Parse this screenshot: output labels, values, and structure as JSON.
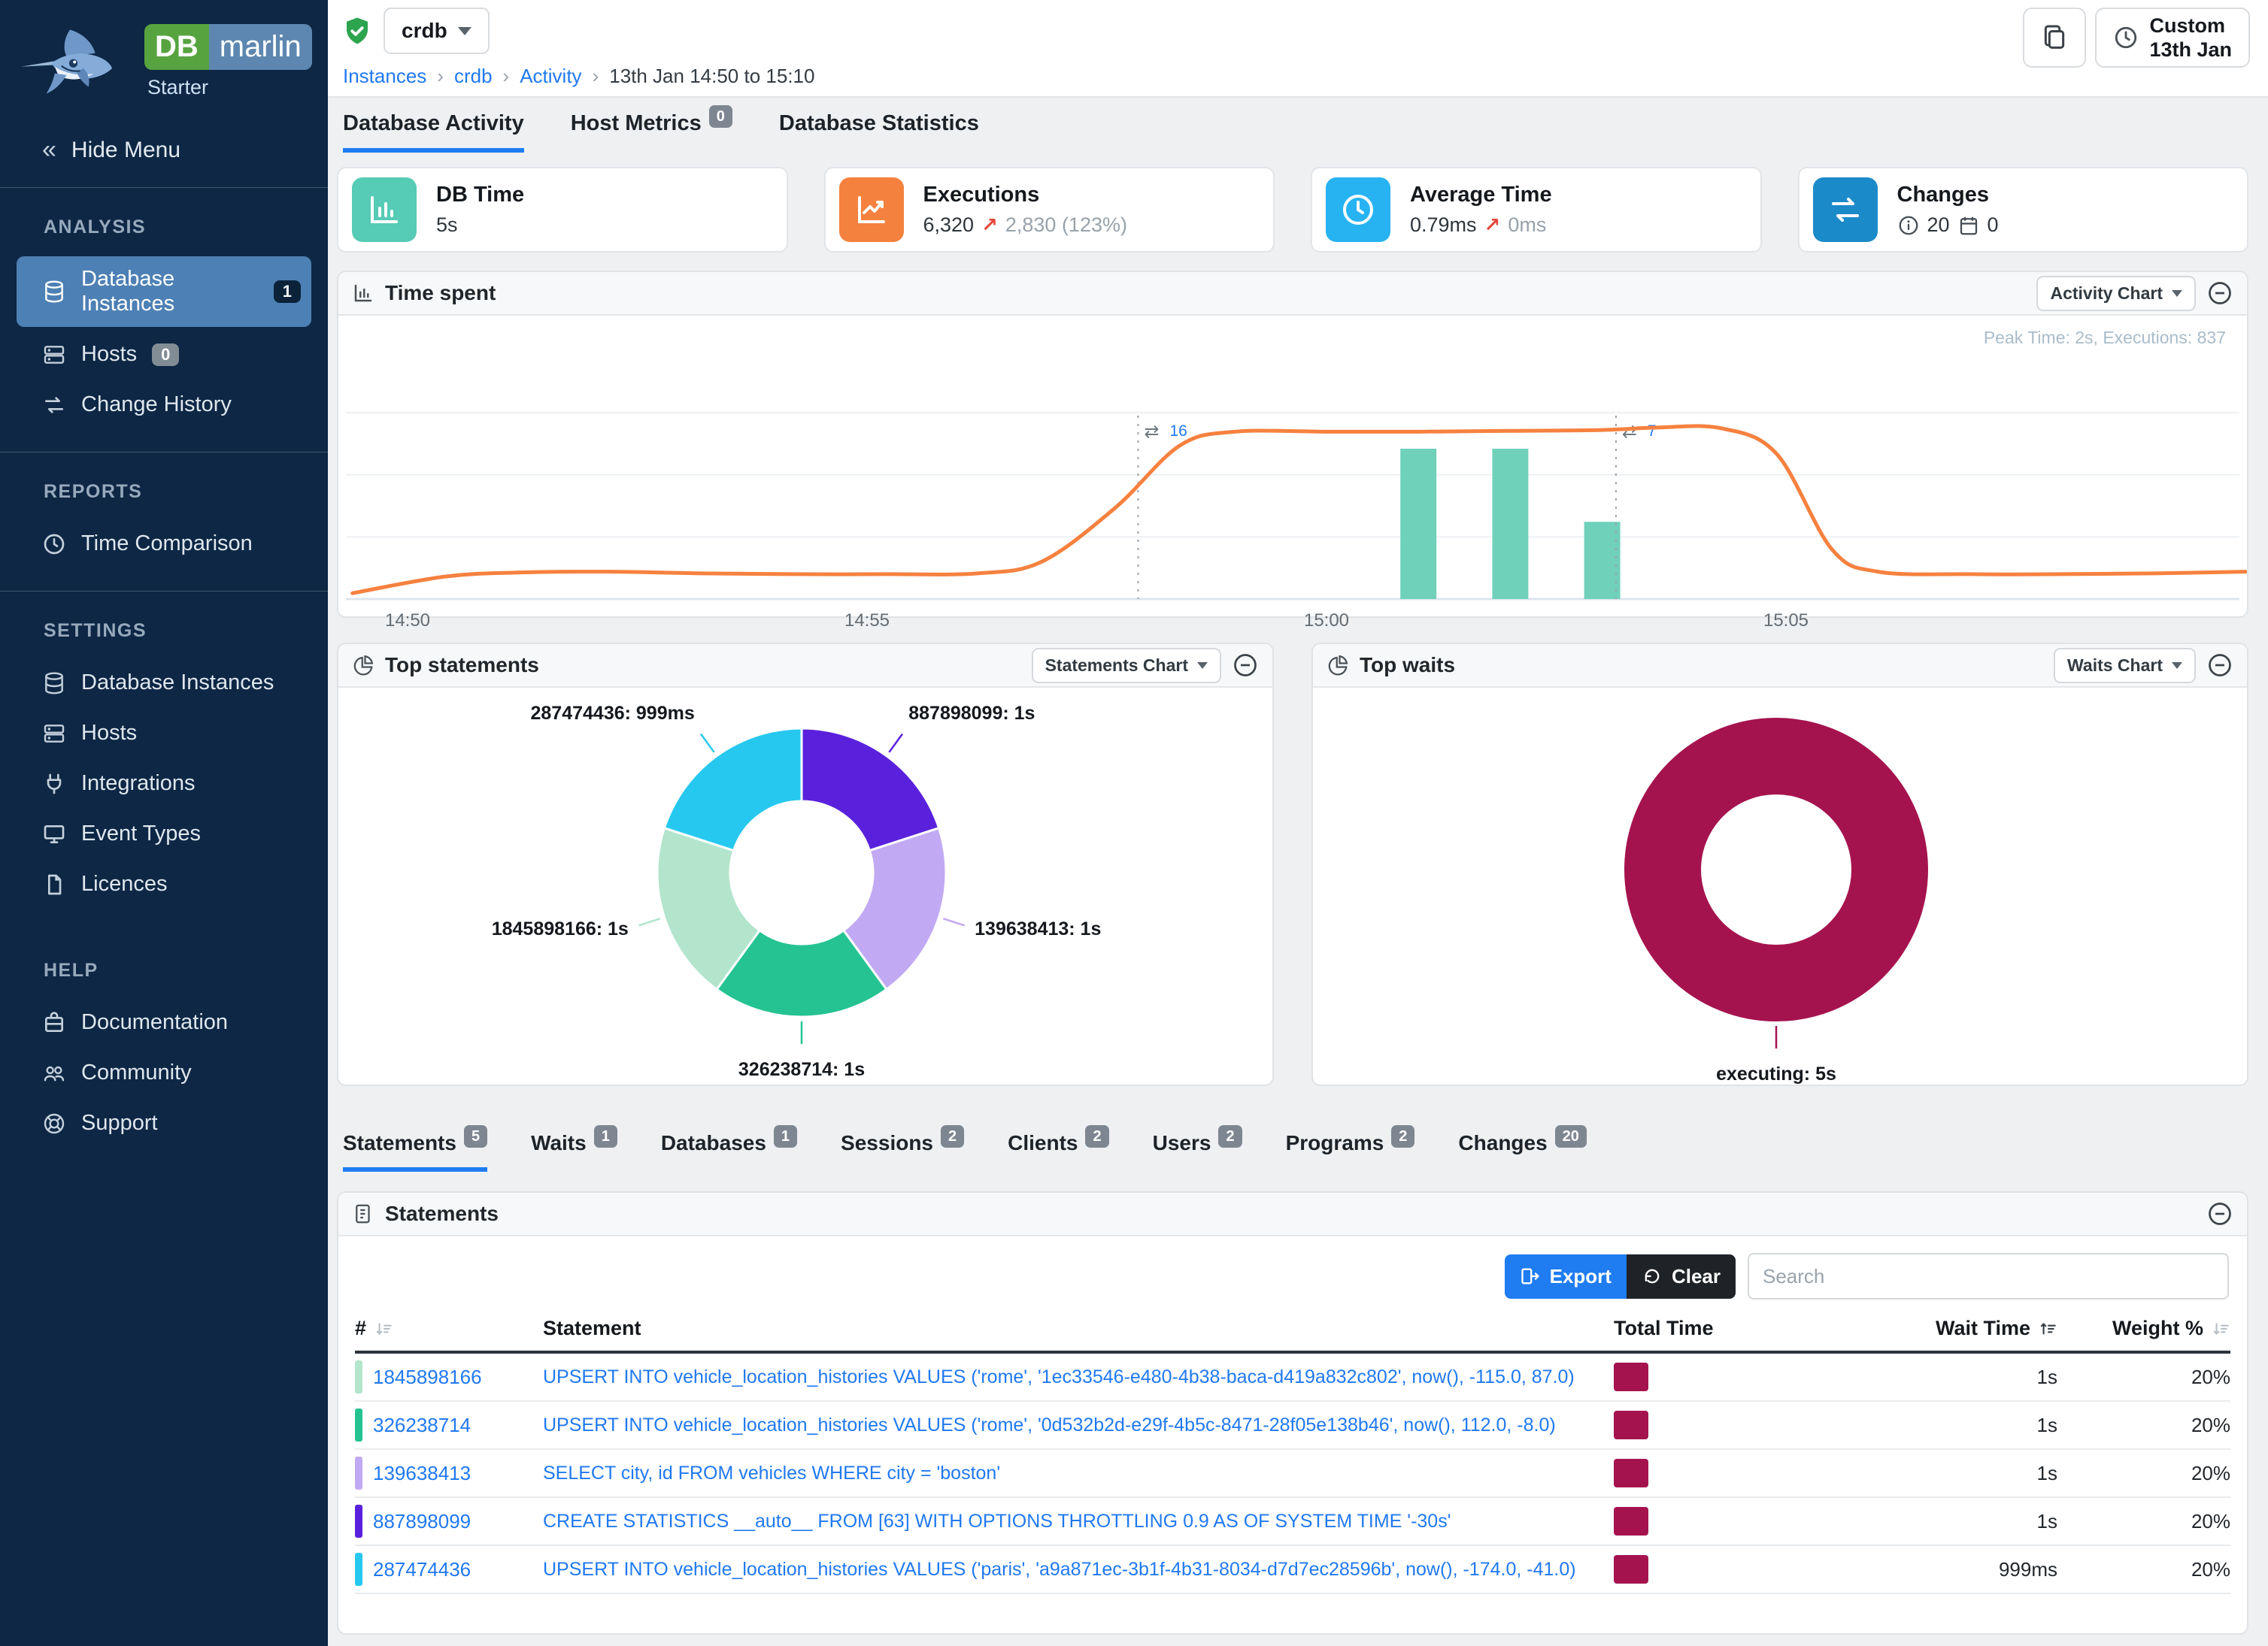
{
  "app": {
    "logo": {
      "db": "DB",
      "marlin": "marlin",
      "plan": "Starter"
    },
    "hide_menu": "Hide Menu"
  },
  "sidebar": {
    "sections": [
      {
        "title": "ANALYSIS",
        "items": [
          {
            "label": "Database Instances",
            "icon": "database",
            "badge": "1",
            "badge_style": "dark",
            "active": true
          },
          {
            "label": "Hosts",
            "icon": "server",
            "badge": "0",
            "badge_style": "gray"
          },
          {
            "label": "Change History",
            "icon": "swap"
          }
        ]
      },
      {
        "title": "REPORTS",
        "items": [
          {
            "label": "Time Comparison",
            "icon": "clock"
          }
        ]
      },
      {
        "title": "SETTINGS",
        "items": [
          {
            "label": "Database Instances",
            "icon": "database"
          },
          {
            "label": "Hosts",
            "icon": "server"
          },
          {
            "label": "Integrations",
            "icon": "plug"
          },
          {
            "label": "Event Types",
            "icon": "monitor"
          },
          {
            "label": "Licences",
            "icon": "licence"
          }
        ]
      },
      {
        "title": "HELP",
        "items": [
          {
            "label": "Documentation",
            "icon": "docs"
          },
          {
            "label": "Community",
            "icon": "people"
          },
          {
            "label": "Support",
            "icon": "support"
          }
        ]
      }
    ]
  },
  "header": {
    "instance": "crdb",
    "breadcrumb": [
      {
        "label": "Instances",
        "link": true
      },
      {
        "label": "crdb",
        "link": true
      },
      {
        "label": "Activity",
        "link": true
      },
      {
        "label": "13th Jan 14:50 to 15:10",
        "link": false
      }
    ],
    "time_range_button": {
      "line1": "Custom",
      "line2": "13th Jan"
    }
  },
  "page_tabs": [
    {
      "label": "Database Activity",
      "active": true
    },
    {
      "label": "Host Metrics",
      "badge": "0"
    },
    {
      "label": "Database Statistics"
    }
  ],
  "summary_cards": [
    {
      "title": "DB Time",
      "icon": "barchart",
      "icon_bg": "#56cbb5",
      "value": "5s"
    },
    {
      "title": "Executions",
      "icon": "linechart",
      "icon_bg": "#f5813e",
      "value": "6,320",
      "delta_arrow": "↗",
      "delta": "2,830 (123%)"
    },
    {
      "title": "Average Time",
      "icon": "clock",
      "icon_bg": "#27b3f2",
      "value": "0.79ms",
      "delta_arrow": "↗",
      "delta": "0ms"
    },
    {
      "title": "Changes",
      "icon": "swap",
      "icon_bg": "#1b8ac9",
      "info_value": "20",
      "calendar_value": "0"
    }
  ],
  "time_spent_panel": {
    "title": "Time spent",
    "chart_button": "Activity Chart",
    "peak_note": "Peak Time: 2s, Executions: 837",
    "chart_data": {
      "type": "line+bar",
      "x_ticks": [
        {
          "t": 0,
          "label": "14:50"
        },
        {
          "t": 5,
          "label": "14:55"
        },
        {
          "t": 10,
          "label": "15:00"
        },
        {
          "t": 15,
          "label": "15:05"
        }
      ],
      "x_range_minutes": [
        -0.6,
        20.0
      ],
      "y_range_seconds": [
        0,
        2.25
      ],
      "y_gridlines": [
        0,
        0.75,
        1.5,
        2.25
      ],
      "line_series": {
        "name": "DB Time (s)",
        "color": "#f6813f",
        "points": [
          [
            -0.6,
            0.07
          ],
          [
            0.4,
            0.27
          ],
          [
            1.2,
            0.32
          ],
          [
            2.2,
            0.33
          ],
          [
            3.2,
            0.31
          ],
          [
            4.2,
            0.3
          ],
          [
            5.2,
            0.3
          ],
          [
            6.2,
            0.31
          ],
          [
            6.9,
            0.45
          ],
          [
            7.7,
            1.1
          ],
          [
            8.4,
            1.85
          ],
          [
            9.0,
            2.02
          ],
          [
            10,
            2.02
          ],
          [
            11,
            2.02
          ],
          [
            12,
            2.03
          ],
          [
            13,
            2.04
          ],
          [
            13.6,
            2.07
          ],
          [
            14.3,
            2.06
          ],
          [
            14.9,
            1.75
          ],
          [
            15.5,
            0.6
          ],
          [
            16,
            0.33
          ],
          [
            17,
            0.3
          ],
          [
            18,
            0.3
          ],
          [
            19,
            0.31
          ],
          [
            20,
            0.33
          ]
        ]
      },
      "bar_series": {
        "name": "Executions",
        "color": "#70d1bb",
        "peak": 837,
        "bars": [
          [
            11,
            837
          ],
          [
            12,
            837
          ],
          [
            13,
            430
          ]
        ]
      },
      "change_annotations": [
        {
          "t": 7.95,
          "count": "16"
        },
        {
          "t": 13.15,
          "count": "7"
        }
      ]
    }
  },
  "top_statements_panel": {
    "title": "Top statements",
    "chart_button": "Statements Chart",
    "chart_data": {
      "type": "donut",
      "slices": [
        {
          "label": "887898099: 1s",
          "value": 20,
          "color": "#5a21dc"
        },
        {
          "label": "139638413: 1s",
          "value": 20,
          "color": "#c2a9f3"
        },
        {
          "label": "326238714: 1s",
          "value": 20,
          "color": "#25c392"
        },
        {
          "label": "1845898166: 1s",
          "value": 20,
          "color": "#b2e5cc"
        },
        {
          "label": "287474436: 999ms",
          "value": 20,
          "color": "#27c8f0"
        }
      ]
    }
  },
  "top_waits_panel": {
    "title": "Top waits",
    "chart_button": "Waits Chart",
    "chart_data": {
      "type": "donut",
      "slices": [
        {
          "label": "executing: 5s",
          "value": 100,
          "color": "#a5134e"
        }
      ]
    }
  },
  "detail_tabs": [
    {
      "label": "Statements",
      "badge": "5",
      "active": true
    },
    {
      "label": "Waits",
      "badge": "1"
    },
    {
      "label": "Databases",
      "badge": "1"
    },
    {
      "label": "Sessions",
      "badge": "2"
    },
    {
      "label": "Clients",
      "badge": "2"
    },
    {
      "label": "Users",
      "badge": "2"
    },
    {
      "label": "Programs",
      "badge": "2"
    },
    {
      "label": "Changes",
      "badge": "20"
    }
  ],
  "statements_panel": {
    "title": "Statements",
    "export_label": "Export",
    "clear_label": "Clear",
    "search_placeholder": "Search",
    "columns": [
      {
        "label": "#",
        "sort": "both",
        "align": "left"
      },
      {
        "label": "Statement",
        "align": "left"
      },
      {
        "label": "Total Time",
        "align": "left"
      },
      {
        "label": "Wait Time",
        "sort": "asc",
        "align": "right"
      },
      {
        "label": "Weight %",
        "sort": "both",
        "align": "right"
      }
    ],
    "rows": [
      {
        "id": "1845898166",
        "color": "#b2e5cc",
        "statement": "UPSERT INTO vehicle_location_histories VALUES ('rome', '1ec33546-e480-4b38-baca-d419a832c802', now(), -115.0, 87.0)",
        "total_time_color": "#a5134e",
        "wait_time": "1s",
        "weight": "20%"
      },
      {
        "id": "326238714",
        "color": "#25c392",
        "statement": "UPSERT INTO vehicle_location_histories VALUES ('rome', '0d532b2d-e29f-4b5c-8471-28f05e138b46', now(), 112.0, -8.0)",
        "total_time_color": "#a5134e",
        "wait_time": "1s",
        "weight": "20%"
      },
      {
        "id": "139638413",
        "color": "#c2a9f3",
        "statement": "SELECT city, id FROM vehicles WHERE city = 'boston'",
        "total_time_color": "#a5134e",
        "wait_time": "1s",
        "weight": "20%"
      },
      {
        "id": "887898099",
        "color": "#5a21dc",
        "statement": "CREATE STATISTICS __auto__ FROM [63] WITH OPTIONS THROTTLING 0.9 AS OF SYSTEM TIME '-30s'",
        "total_time_color": "#a5134e",
        "wait_time": "1s",
        "weight": "20%"
      },
      {
        "id": "287474436",
        "color": "#27c8f0",
        "statement": "UPSERT INTO vehicle_location_histories VALUES ('paris', 'a9a871ec-3b1f-4b31-8034-d7d7ec28596b', now(), -174.0, -41.0)",
        "total_time_color": "#a5134e",
        "wait_time": "999ms",
        "weight": "20%"
      }
    ]
  }
}
